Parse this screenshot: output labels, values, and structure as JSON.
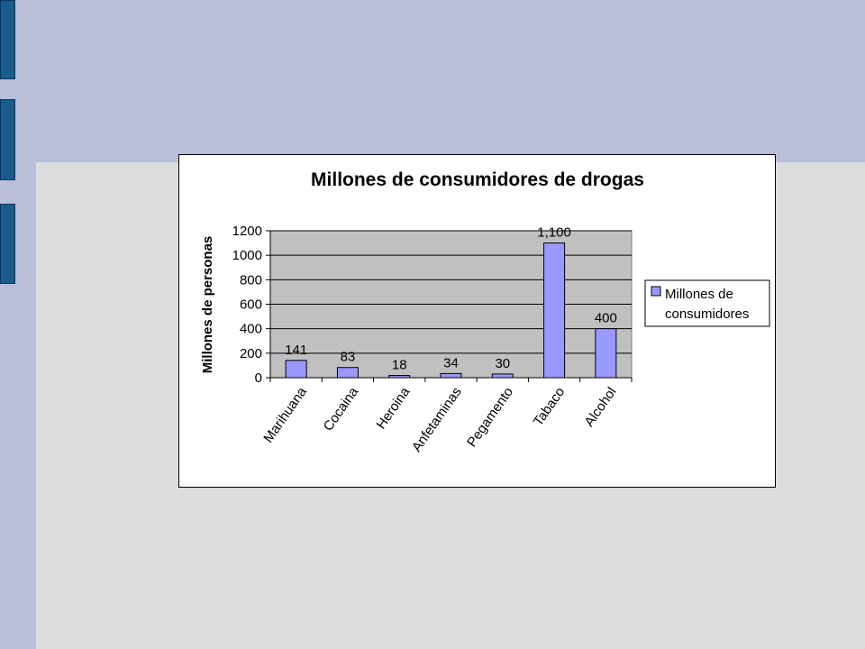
{
  "theme": {
    "slide_bg": "#dcdcdc",
    "slide_band": "#b9bed9",
    "tab_color": "#1a5b8e",
    "plot_bg": "#c0c0c0",
    "bar_fill": "#9999ff",
    "bar_stroke": "#000000"
  },
  "chart_data": {
    "type": "bar",
    "title": "Millones de consumidores de drogas",
    "xlabel": "",
    "ylabel": "Millones de personas",
    "ylim": [
      0,
      1200
    ],
    "yticks": [
      0,
      200,
      400,
      600,
      800,
      1000,
      1200
    ],
    "ytick_labels": [
      "0",
      "200",
      "400",
      "600",
      "800",
      "1000",
      "1200"
    ],
    "grid": true,
    "legend_position": "right",
    "categories": [
      "Marihuana",
      "Cocaina",
      "Heroina",
      "Anfetaminas",
      "Pegamento",
      "Tabaco",
      "Alcohol"
    ],
    "series": [
      {
        "name": "Millones de consumidores",
        "values": [
          141,
          83,
          18,
          34,
          30,
          1100,
          400
        ],
        "data_labels": [
          "141",
          "83",
          "18",
          "34",
          "30",
          "1,100",
          "400"
        ]
      }
    ],
    "legend": {
      "line1": "Millones de",
      "line2": "consumidores"
    }
  }
}
